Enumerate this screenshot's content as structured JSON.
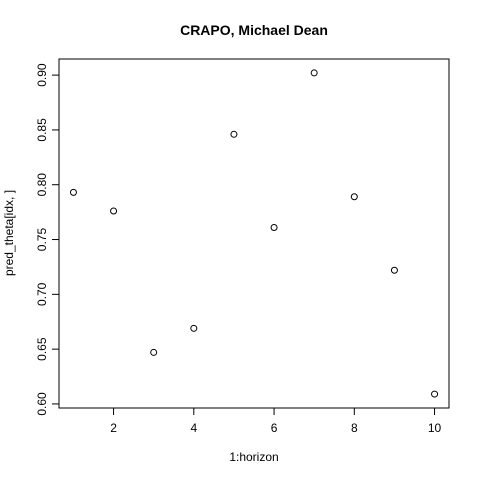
{
  "chart_data": {
    "type": "scatter",
    "title": "CRAPO, Michael Dean",
    "xlabel": "1:horizon",
    "ylabel": "pred_theta[idx, ]",
    "x": [
      1,
      2,
      3,
      4,
      5,
      6,
      7,
      8,
      9,
      10
    ],
    "y": [
      0.793,
      0.776,
      0.647,
      0.669,
      0.846,
      0.761,
      0.902,
      0.789,
      0.722,
      0.609
    ],
    "xlim": [
      0.64,
      10.36
    ],
    "ylim": [
      0.5963,
      0.9147
    ],
    "xticks": [
      2,
      4,
      6,
      8,
      10
    ],
    "xtick_labels": [
      "2",
      "4",
      "6",
      "8",
      "10"
    ],
    "yticks": [
      0.6,
      0.65,
      0.7,
      0.75,
      0.8,
      0.85,
      0.9
    ],
    "ytick_labels": [
      "0.60",
      "0.65",
      "0.70",
      "0.75",
      "0.80",
      "0.85",
      "0.90"
    ],
    "grid": false,
    "marker": "open-circle"
  }
}
